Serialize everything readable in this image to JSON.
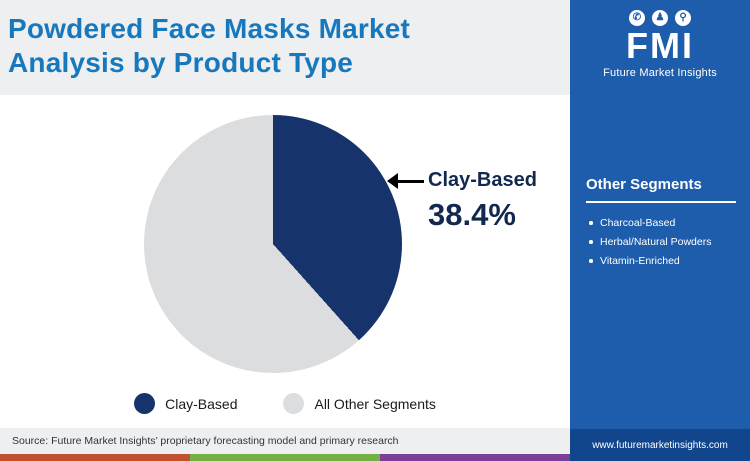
{
  "page": {
    "title_line1": "Powdered Face Masks Market",
    "title_line2": "Analysis by Product Type",
    "source": "Source: Future Market Insights’ proprietary forecasting model and primary research"
  },
  "logo": {
    "text": "FMI",
    "subtitle": "Future Market Insights",
    "icon_glyphs": [
      "☎",
      "👤",
      "🔍"
    ]
  },
  "sidebar": {
    "heading": "Other Segments",
    "items": [
      "Charcoal-Based",
      "Herbal/Natural Powders",
      "Vitamin-Enriched"
    ],
    "website": "www.futuremarketinsights.com"
  },
  "annotation": {
    "label": "Clay-Based",
    "value": "38.4%"
  },
  "legend": [
    {
      "label": "Clay-Based",
      "color": "#16336b"
    },
    {
      "label": "All Other Segments",
      "color": "#dcdddf"
    }
  ],
  "chart_data": {
    "type": "pie",
    "title": "Powdered Face Masks Market Analysis by Product Type",
    "labels": [
      "Clay-Based",
      "All Other Segments"
    ],
    "values": [
      38.4,
      61.6
    ],
    "colors": [
      "#16336b",
      "#dcdddf"
    ],
    "start_angle_deg": 0,
    "direction": "clockwise",
    "legend_position": "bottom"
  },
  "colors": {
    "title": "#1778bd",
    "sidebar": "#1e5dab",
    "sidebar_footer": "#12468c",
    "strip": [
      "#c0502f",
      "#74b045",
      "#7b3f98"
    ]
  }
}
